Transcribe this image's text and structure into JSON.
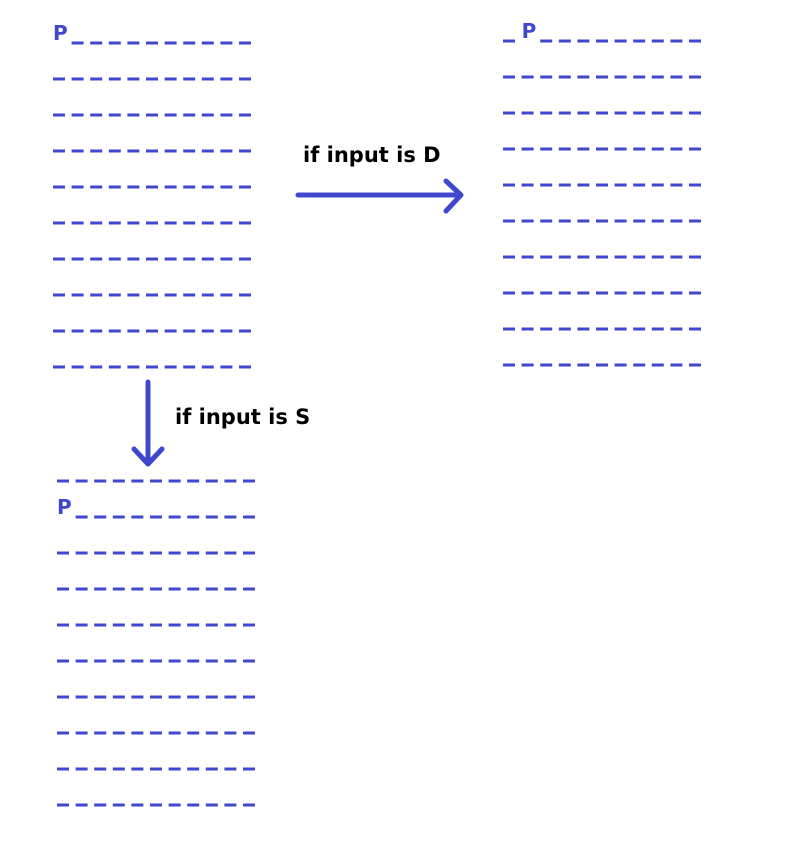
{
  "colors": {
    "accent": "#3f48cc",
    "text": "#000000",
    "background": "#ffffff"
  },
  "player_marker": "P",
  "grid": {
    "rows": 10,
    "dashes_per_row": 11
  },
  "transitions": [
    {
      "key": "D",
      "label": "if input is D"
    },
    {
      "key": "S",
      "label": "if input is S"
    }
  ],
  "grids": [
    {
      "name": "initial",
      "player": {
        "row": 0,
        "col": 0
      }
    },
    {
      "name": "after-d",
      "player": {
        "row": 0,
        "col": 1
      }
    },
    {
      "name": "after-s",
      "player": {
        "row": 1,
        "col": 0
      }
    }
  ]
}
